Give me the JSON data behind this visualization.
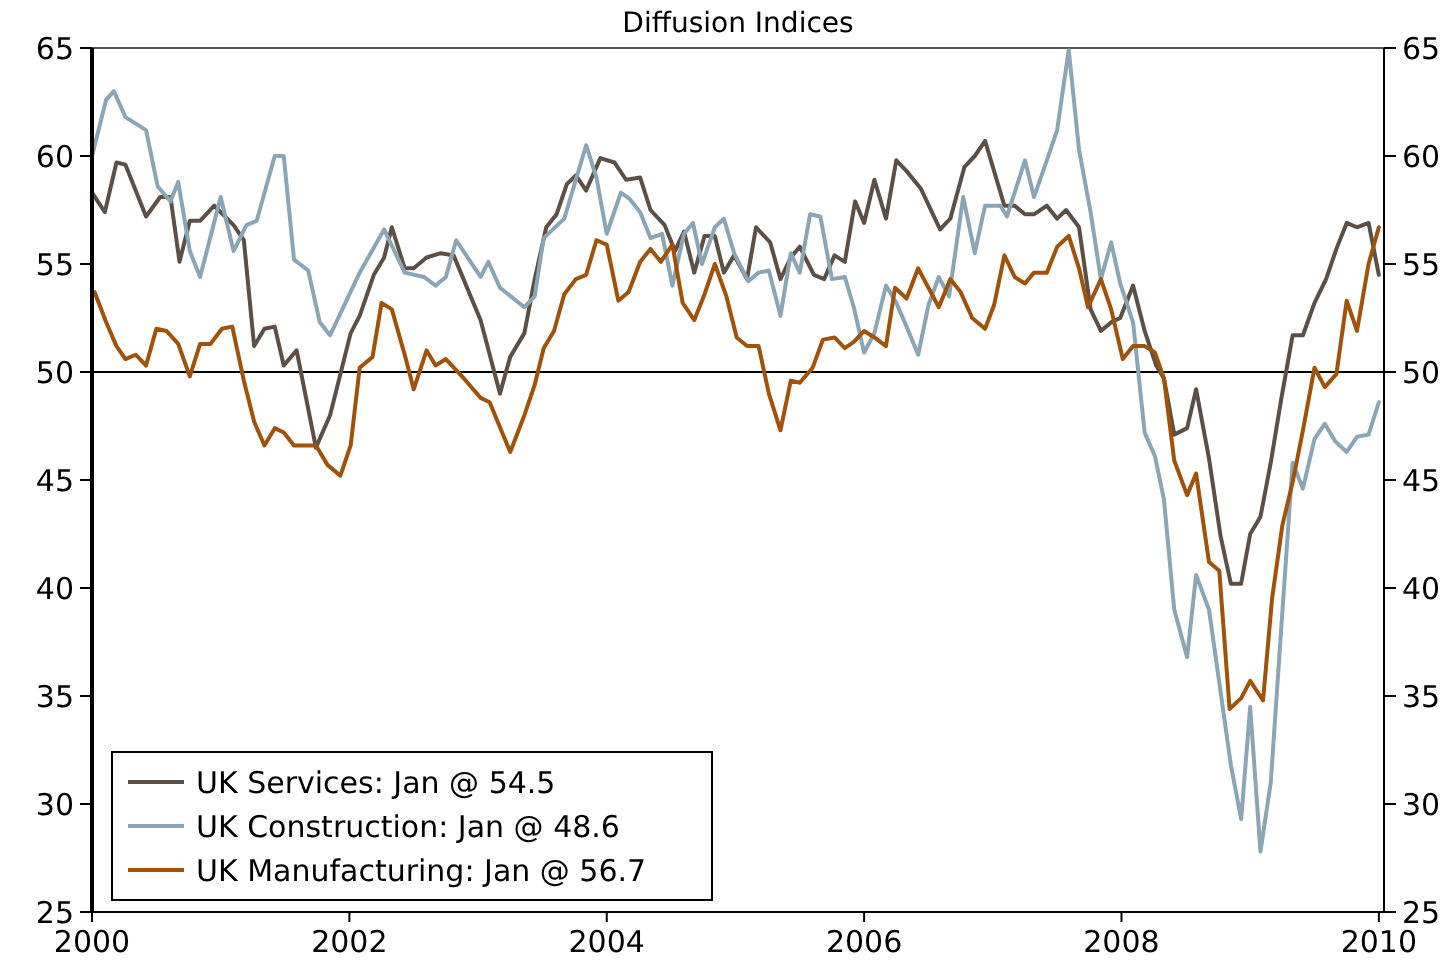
{
  "chart_data": {
    "type": "line",
    "title": "Diffusion Indices",
    "xlim": [
      2000,
      2010.04
    ],
    "xticks": [
      2000,
      2002,
      2004,
      2006,
      2008,
      2010
    ],
    "ylim": [
      25,
      65
    ],
    "yticks": [
      25,
      30,
      35,
      40,
      45,
      50,
      55,
      60,
      65
    ],
    "y2lim": [
      25,
      65
    ],
    "y2ticks": [
      25,
      30,
      35,
      40,
      45,
      50,
      55,
      60,
      65
    ],
    "grid": false,
    "legend": "bottom left",
    "line_style": "solid",
    "marker": "none",
    "ref_lines": [
      {
        "axis": "y",
        "value": 50,
        "color": "#000000"
      }
    ],
    "series": [
      {
        "name": "UK Services: Jan @ 54.5",
        "color": "#5c4f45",
        "x": [
          2000.0,
          2000.1,
          2000.19,
          2000.26,
          2000.42,
          2000.53,
          2000.61,
          2000.68,
          2000.76,
          2000.84,
          2000.95,
          2001.1,
          2001.18,
          2001.26,
          2001.34,
          2001.42,
          2001.49,
          2001.59,
          2001.74,
          2001.85,
          2002.01,
          2002.08,
          2002.19,
          2002.27,
          2002.33,
          2002.43,
          2002.5,
          2002.6,
          2002.71,
          2002.81,
          2003.02,
          2003.17,
          2003.25,
          2003.36,
          2003.44,
          2003.53,
          2003.61,
          2003.69,
          2003.76,
          2003.84,
          2003.95,
          2004.06,
          2004.15,
          2004.26,
          2004.34,
          2004.45,
          2004.53,
          2004.6,
          2004.68,
          2004.76,
          2004.84,
          2004.91,
          2004.99,
          2005.09,
          2005.16,
          2005.27,
          2005.35,
          2005.43,
          2005.5,
          2005.61,
          2005.69,
          2005.77,
          2005.85,
          2005.93,
          2006.0,
          2006.08,
          2006.17,
          2006.25,
          2006.33,
          2006.44,
          2006.59,
          2006.67,
          2006.78,
          2006.86,
          2006.94,
          2007.09,
          2007.17,
          2007.25,
          2007.32,
          2007.42,
          2007.5,
          2007.57,
          2007.67,
          2007.76,
          2007.84,
          2007.92,
          2007.99,
          2008.09,
          2008.18,
          2008.27,
          2008.33,
          2008.41,
          2008.51,
          2008.58,
          2008.68,
          2008.77,
          2008.85,
          2008.93,
          2009.0,
          2009.08,
          2009.16,
          2009.24,
          2009.33,
          2009.41,
          2009.5,
          2009.59,
          2009.67,
          2009.75,
          2009.83,
          2009.92,
          2010.0
        ],
        "values": [
          58.3,
          57.4,
          59.7,
          59.6,
          57.2,
          58.1,
          58.1,
          55.1,
          57.0,
          57.0,
          57.7,
          56.8,
          56.1,
          51.2,
          52.0,
          52.1,
          50.3,
          51.0,
          46.5,
          48.0,
          51.8,
          52.6,
          54.5,
          55.3,
          56.7,
          54.8,
          54.8,
          55.3,
          55.5,
          55.4,
          52.4,
          49.0,
          50.7,
          51.8,
          54.3,
          56.7,
          57.3,
          58.7,
          59.1,
          58.4,
          59.9,
          59.7,
          58.9,
          59.0,
          57.5,
          56.8,
          55.6,
          56.5,
          54.6,
          56.3,
          56.3,
          54.6,
          55.4,
          54.3,
          56.7,
          56.0,
          54.3,
          55.3,
          55.8,
          54.5,
          54.3,
          55.4,
          55.1,
          57.9,
          56.9,
          58.9,
          57.1,
          59.8,
          59.3,
          58.5,
          56.6,
          57.1,
          59.5,
          60.0,
          60.7,
          57.7,
          57.7,
          57.3,
          57.3,
          57.7,
          57.1,
          57.5,
          56.7,
          52.9,
          51.9,
          52.3,
          52.5,
          54.0,
          51.9,
          50.3,
          49.7,
          47.1,
          47.4,
          49.2,
          46.0,
          42.4,
          40.2,
          40.2,
          42.5,
          43.3,
          45.8,
          48.7,
          51.7,
          51.7,
          53.2,
          54.3,
          55.7,
          56.9,
          56.7,
          56.9,
          54.5
        ]
      },
      {
        "name": "UK Construction: Jan @ 48.6",
        "color": "#8aa5b5",
        "x": [
          2000.0,
          2000.11,
          2000.17,
          2000.26,
          2000.42,
          2000.51,
          2000.61,
          2000.67,
          2000.76,
          2000.84,
          2001.0,
          2001.1,
          2001.2,
          2001.28,
          2001.42,
          2001.49,
          2001.57,
          2001.68,
          2001.77,
          2001.85,
          2002.08,
          2002.27,
          2002.43,
          2002.58,
          2002.67,
          2002.75,
          2002.83,
          2003.02,
          2003.08,
          2003.17,
          2003.36,
          2003.44,
          2003.51,
          2003.67,
          2003.76,
          2003.84,
          2003.92,
          2004.0,
          2004.11,
          2004.18,
          2004.26,
          2004.34,
          2004.43,
          2004.51,
          2004.6,
          2004.67,
          2004.74,
          2004.84,
          2004.91,
          2004.99,
          2005.1,
          2005.18,
          2005.26,
          2005.35,
          2005.43,
          2005.5,
          2005.58,
          2005.66,
          2005.75,
          2005.85,
          2005.92,
          2006.0,
          2006.08,
          2006.17,
          2006.25,
          2006.33,
          2006.42,
          2006.5,
          2006.58,
          2006.66,
          2006.77,
          2006.86,
          2006.94,
          2007.06,
          2007.11,
          2007.17,
          2007.25,
          2007.32,
          2007.42,
          2007.5,
          2007.59,
          2007.67,
          2007.76,
          2007.84,
          2007.92,
          2007.99,
          2008.09,
          2008.18,
          2008.26,
          2008.33,
          2008.41,
          2008.51,
          2008.58,
          2008.68,
          2008.77,
          2008.85,
          2008.93,
          2009.0,
          2009.08,
          2009.16,
          2009.24,
          2009.33,
          2009.41,
          2009.5,
          2009.58,
          2009.66,
          2009.75,
          2009.83,
          2009.92,
          2010.0
        ],
        "values": [
          60.0,
          62.6,
          63.0,
          61.8,
          61.2,
          58.6,
          57.9,
          58.8,
          55.6,
          54.4,
          58.1,
          55.6,
          56.8,
          57.0,
          60.0,
          60.0,
          55.2,
          54.7,
          52.3,
          51.7,
          54.6,
          56.6,
          54.6,
          54.4,
          54.0,
          54.4,
          56.1,
          54.4,
          55.1,
          53.9,
          53.0,
          53.5,
          56.2,
          57.1,
          58.9,
          60.5,
          59.0,
          56.4,
          58.3,
          58.0,
          57.4,
          56.2,
          56.4,
          54.0,
          56.4,
          56.9,
          55.0,
          56.7,
          57.1,
          55.5,
          54.2,
          54.6,
          54.7,
          52.6,
          55.5,
          54.6,
          57.3,
          57.2,
          54.3,
          54.4,
          53.0,
          50.9,
          51.8,
          54.0,
          53.2,
          52.1,
          50.8,
          53.1,
          54.4,
          53.5,
          58.1,
          55.5,
          57.7,
          57.7,
          57.2,
          58.3,
          59.8,
          58.1,
          59.8,
          61.2,
          64.9,
          60.3,
          57.4,
          54.3,
          56.0,
          54.1,
          52.3,
          47.2,
          46.1,
          44.1,
          39.0,
          36.8,
          40.6,
          39.0,
          35.2,
          31.8,
          29.3,
          34.5,
          27.8,
          31.0,
          38.0,
          45.8,
          44.6,
          46.9,
          47.6,
          46.8,
          46.3,
          47.0,
          47.1,
          48.6
        ]
      },
      {
        "name": "UK Manufacturing: Jan @ 56.7",
        "color": "#a0520a",
        "x": [
          2000.02,
          2000.11,
          2000.19,
          2000.26,
          2000.34,
          2000.42,
          2000.5,
          2000.58,
          2000.67,
          2000.76,
          2000.84,
          2000.92,
          2001.01,
          2001.09,
          2001.18,
          2001.26,
          2001.34,
          2001.42,
          2001.49,
          2001.57,
          2001.74,
          2001.83,
          2001.93,
          2002.01,
          2002.08,
          2002.18,
          2002.25,
          2002.33,
          2002.43,
          2002.5,
          2002.6,
          2002.67,
          2002.75,
          2002.89,
          2003.02,
          2003.09,
          2003.25,
          2003.36,
          2003.44,
          2003.51,
          2003.59,
          2003.67,
          2003.76,
          2003.84,
          2003.92,
          2004.0,
          2004.09,
          2004.17,
          2004.26,
          2004.34,
          2004.42,
          2004.51,
          2004.59,
          2004.68,
          2004.76,
          2004.84,
          2004.93,
          2005.01,
          2005.09,
          2005.18,
          2005.26,
          2005.35,
          2005.43,
          2005.5,
          2005.6,
          2005.68,
          2005.77,
          2005.85,
          2005.92,
          2006.0,
          2006.08,
          2006.17,
          2006.24,
          2006.33,
          2006.42,
          2006.5,
          2006.58,
          2006.67,
          2006.75,
          2006.84,
          2006.94,
          2007.01,
          2007.09,
          2007.17,
          2007.25,
          2007.32,
          2007.42,
          2007.5,
          2007.59,
          2007.67,
          2007.74,
          2007.84,
          2007.92,
          2008.01,
          2008.09,
          2008.18,
          2008.26,
          2008.33,
          2008.41,
          2008.51,
          2008.58,
          2008.68,
          2008.76,
          2008.84,
          2008.93,
          2009.0,
          2009.1,
          2009.17,
          2009.25,
          2009.33,
          2009.41,
          2009.5,
          2009.58,
          2009.67,
          2009.75,
          2009.83,
          2009.92,
          2010.0
        ],
        "values": [
          53.7,
          52.3,
          51.2,
          50.6,
          50.8,
          50.3,
          52.0,
          51.9,
          51.3,
          49.8,
          51.3,
          51.3,
          52.0,
          52.1,
          49.6,
          47.7,
          46.6,
          47.4,
          47.2,
          46.6,
          46.6,
          45.7,
          45.2,
          46.6,
          50.2,
          50.7,
          53.2,
          52.9,
          50.8,
          49.2,
          51.0,
          50.3,
          50.6,
          49.7,
          48.8,
          48.6,
          46.3,
          48.0,
          49.4,
          51.1,
          51.9,
          53.6,
          54.3,
          54.5,
          56.1,
          55.9,
          53.3,
          53.7,
          55.1,
          55.7,
          55.1,
          55.9,
          53.2,
          52.4,
          53.6,
          55.0,
          53.5,
          51.6,
          51.2,
          51.2,
          49.0,
          47.3,
          49.6,
          49.5,
          50.2,
          51.5,
          51.6,
          51.1,
          51.4,
          51.9,
          51.6,
          51.2,
          53.9,
          53.4,
          54.8,
          53.9,
          53.0,
          54.3,
          53.7,
          52.5,
          52.0,
          53.1,
          55.4,
          54.4,
          54.1,
          54.6,
          54.6,
          55.8,
          56.3,
          54.8,
          53.0,
          54.3,
          52.9,
          50.6,
          51.2,
          51.2,
          50.9,
          49.7,
          45.9,
          44.3,
          45.3,
          41.2,
          40.8,
          34.4,
          34.9,
          35.7,
          34.8,
          39.5,
          42.9,
          44.9,
          47.3,
          50.2,
          49.3,
          49.9,
          53.3,
          51.9,
          55.0,
          56.7
        ]
      }
    ]
  }
}
